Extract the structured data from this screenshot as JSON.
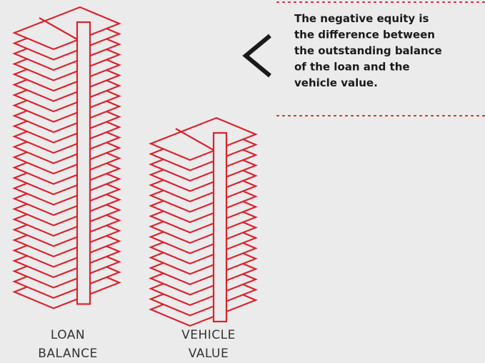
{
  "explanation": {
    "lines": [
      "The negative equity is",
      "the difference between",
      "the outstanding balance",
      "of the loan and the",
      "vehicle value."
    ]
  },
  "stacks": [
    {
      "label": [
        "LOAN",
        "BALANCE"
      ]
    },
    {
      "label": [
        "VEHICLE",
        "VALUE"
      ]
    }
  ]
}
